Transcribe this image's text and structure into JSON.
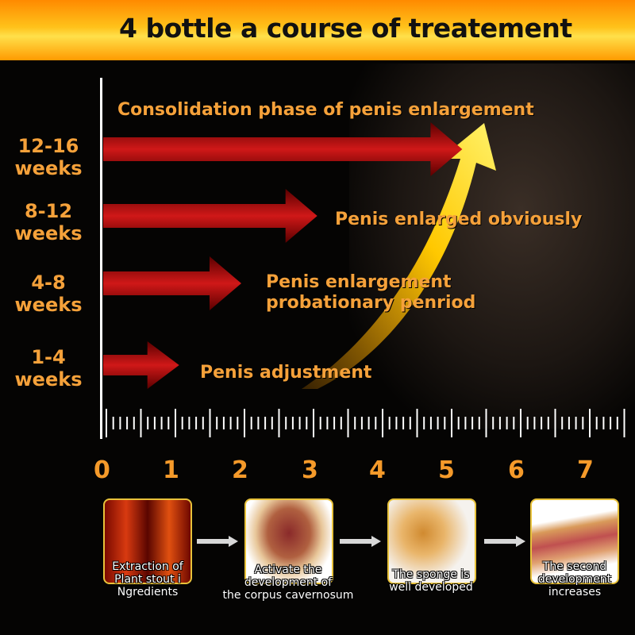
{
  "title": "4 bottle a course of treatement",
  "colors": {
    "header": "#ffb000",
    "arrow": "#b01010",
    "label": "#f5a13a",
    "curve": "#ffd21a"
  },
  "stages": [
    {
      "weeks_line1": "12-16",
      "weeks_line2": "weeks",
      "phase": "Consolidation phase of penis enlargement",
      "arrow_end": 5.2
    },
    {
      "weeks_line1": "8-12",
      "weeks_line2": "weeks",
      "phase": "Penis enlarged obviously",
      "arrow_end": 3.1
    },
    {
      "weeks_line1": "4-8",
      "weeks_line2": "weeks",
      "phase_line1": "Penis enlargement",
      "phase_line2": "probationary penriod",
      "arrow_end": 2.0
    },
    {
      "weeks_line1": "1-4",
      "weeks_line2": "weeks",
      "phase": "Penis adjustment",
      "arrow_end": 1.1
    }
  ],
  "scale": [
    "0",
    "1",
    "2",
    "3",
    "4",
    "5",
    "6",
    "7"
  ],
  "steps": [
    {
      "line1": "Extraction of",
      "line2": "Plant stout i",
      "line3": "Ngredients"
    },
    {
      "line1": "Activate the",
      "line2": "development of",
      "line3": "the corpus cavernosum"
    },
    {
      "line1": "The sponge is",
      "line2": "well developed"
    },
    {
      "line1": "The second",
      "line2": "development",
      "line3": "increases"
    }
  ]
}
